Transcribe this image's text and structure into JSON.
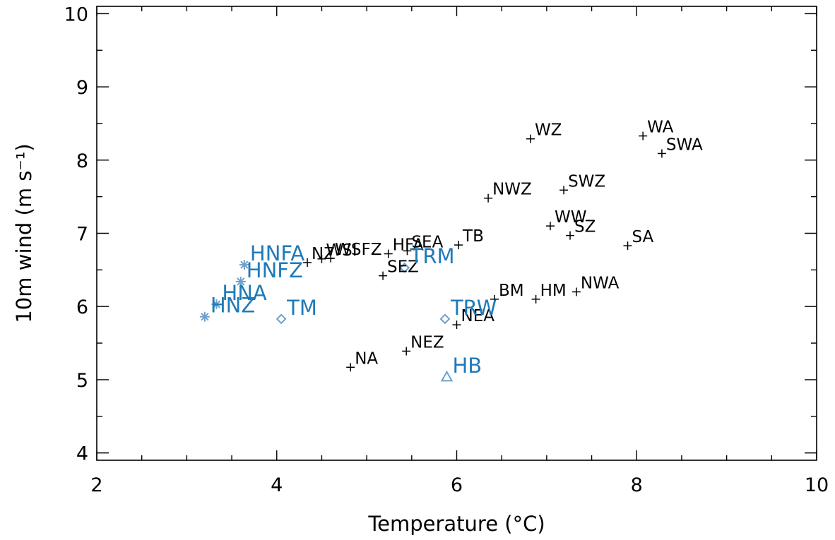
{
  "chart_data": {
    "type": "scatter",
    "xlabel": "Temperature (°C)",
    "ylabel": "10m wind (m s⁻¹)",
    "xlim": [
      2,
      10
    ],
    "ylim": [
      3.9,
      10.1
    ],
    "x_ticks": [
      "2",
      "4",
      "6",
      "8",
      "10"
    ],
    "y_ticks": [
      "4",
      "5",
      "6",
      "7",
      "8",
      "9",
      "10"
    ],
    "grid": false,
    "legend": "none",
    "colors": {
      "black_points": "#000000",
      "blue_labels": "#1f7ab8",
      "blue_markers": "#6fa0cc"
    },
    "series": [
      {
        "marker": "plus",
        "points": [
          {
            "label": "WZ",
            "x": 6.82,
            "y": 8.29
          },
          {
            "label": "WA",
            "x": 8.07,
            "y": 8.33
          },
          {
            "label": "SWA",
            "x": 8.28,
            "y": 8.09
          },
          {
            "label": "SWZ",
            "x": 7.19,
            "y": 7.59
          },
          {
            "label": "NWZ",
            "x": 6.35,
            "y": 7.48
          },
          {
            "label": "WW",
            "x": 7.04,
            "y": 7.1
          },
          {
            "label": "SZ",
            "x": 7.26,
            "y": 6.97
          },
          {
            "label": "SA",
            "x": 7.9,
            "y": 6.83
          },
          {
            "label": "TB",
            "x": 6.02,
            "y": 6.84
          },
          {
            "label": "SEA",
            "x": 5.45,
            "y": 6.76
          },
          {
            "label": "HFA",
            "x": 5.24,
            "y": 6.72
          },
          {
            "label": "WSFZ",
            "x": 4.6,
            "y": 6.66
          },
          {
            "label": "WSI",
            "x": 4.5,
            "y": 6.65
          },
          {
            "label": "NZ",
            "x": 4.34,
            "y": 6.6
          },
          {
            "label": "SEZ",
            "x": 5.18,
            "y": 6.42
          },
          {
            "label": "NWA",
            "x": 7.33,
            "y": 6.2
          },
          {
            "label": "HM",
            "x": 6.88,
            "y": 6.1
          },
          {
            "label": "BM",
            "x": 6.42,
            "y": 6.1
          },
          {
            "label": "NEA",
            "x": 6.0,
            "y": 5.75
          },
          {
            "label": "NEZ",
            "x": 5.44,
            "y": 5.39
          },
          {
            "label": "NA",
            "x": 4.82,
            "y": 5.17
          }
        ]
      },
      {
        "marker": "asterisk",
        "points": [
          {
            "label": "HNFA",
            "x": 3.64,
            "y": 6.57
          },
          {
            "label": "HNFZ",
            "x": 3.6,
            "y": 6.34
          },
          {
            "label": "HNA",
            "x": 3.33,
            "y": 6.03
          },
          {
            "label": "HNZ",
            "x": 3.2,
            "y": 5.86
          }
        ]
      },
      {
        "marker": "diamond",
        "points": [
          {
            "label": "TRM",
            "x": 5.42,
            "y": 6.53
          },
          {
            "label": "TRW",
            "x": 5.87,
            "y": 5.83
          },
          {
            "label": "TM",
            "x": 4.05,
            "y": 5.83
          }
        ]
      },
      {
        "marker": "triangle",
        "points": [
          {
            "label": "HB",
            "x": 5.89,
            "y": 5.04
          }
        ]
      }
    ]
  }
}
